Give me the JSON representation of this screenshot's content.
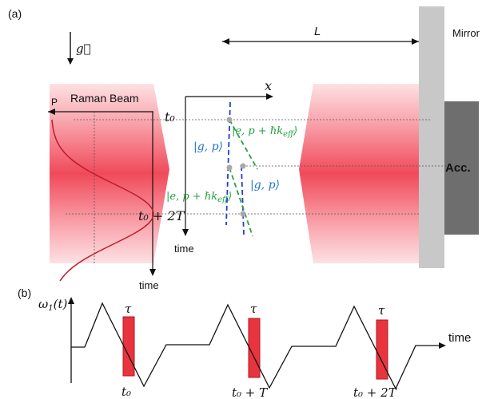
{
  "panel_a": {
    "label": "(a)",
    "gravity": "g⃗",
    "L": "L",
    "mirror": "Mirror",
    "acc": "Acc.",
    "raman_beam": "Raman Beam",
    "p_axis": "P",
    "time_axis_left": "time",
    "x_axis": "x",
    "time_axis_mid": "time",
    "t0": "t₀",
    "t0_2T": "t₀ + 2T",
    "state_g_upper": "|g, p⟩",
    "state_e_upper": "|e, p + ℏk",
    "state_e_upper_sub": "eff",
    "state_e_upper_close": "⟩",
    "state_e_lower": "|e, p + ℏk",
    "state_e_lower_sub": "eff",
    "state_e_lower_close": "⟩",
    "state_g_lower": "|g, p⟩"
  },
  "panel_b": {
    "label": "(b)",
    "omega": "ω",
    "omega_sub": "1",
    "omega_arg": "(t)",
    "time_axis": "time",
    "tau": "τ",
    "pulse_labels": [
      "t₀",
      "t₀ + T",
      "t₀ + 2T"
    ]
  },
  "colors": {
    "beam": "#f04a5a",
    "beam_light": "#fbd8da",
    "mirror": "#c8c8c8",
    "acc": "#6e6e6e",
    "blue_path": "#1f3fd6",
    "green_path": "#2e9e3e",
    "state_blue": "#1f74c8",
    "state_green": "#23a040",
    "pulse": "#e8343f",
    "pulse_edge": "#b01822"
  }
}
